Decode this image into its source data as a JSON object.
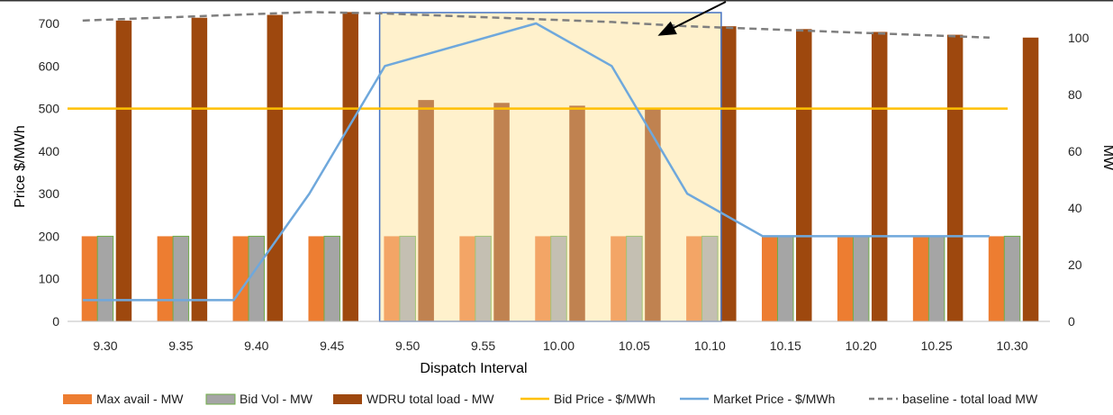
{
  "chart_data": {
    "type": "bar",
    "categories": [
      "9.30",
      "9.35",
      "9.40",
      "9.45",
      "9.50",
      "9.55",
      "10.00",
      "10.05",
      "10.10",
      "10.15",
      "10.20",
      "10.25",
      "10.30"
    ],
    "xlabel": "Dispatch Interval",
    "ylabel": "Price $/MWh",
    "y2label": "MW",
    "ylim": [
      0,
      700
    ],
    "y2lim": [
      0,
      105
    ],
    "yticks": [
      0,
      100,
      200,
      300,
      400,
      500,
      600,
      700
    ],
    "y2ticks": [
      0,
      20,
      40,
      60,
      80,
      100
    ],
    "grid": false,
    "legend_position": "bottom",
    "series": [
      {
        "name": "Max avail - MW",
        "type": "bar",
        "axis": "right",
        "color": "#ED7D31",
        "values": [
          30,
          30,
          30,
          30,
          30,
          30,
          30,
          30,
          30,
          30,
          30,
          30,
          30
        ]
      },
      {
        "name": "Bid Vol - MW",
        "type": "bar",
        "axis": "right",
        "color": "#A5A5A5",
        "values": [
          30,
          30,
          30,
          30,
          30,
          30,
          30,
          30,
          30,
          30,
          30,
          30,
          30
        ]
      },
      {
        "name": "WDRU total load - MW",
        "type": "bar",
        "axis": "right",
        "color": "#9E480E",
        "values": [
          106,
          107,
          108,
          109,
          78,
          77,
          76,
          75,
          104,
          103,
          102,
          101,
          100
        ]
      },
      {
        "name": "Bid Price - $/MWh",
        "type": "line",
        "axis": "left",
        "color": "#FFC000",
        "values": [
          500,
          500,
          500,
          500,
          500,
          500,
          500,
          500,
          500,
          500,
          500,
          500,
          500
        ]
      },
      {
        "name": "Market Price - $/MWh",
        "type": "line",
        "axis": "left",
        "color": "#6FA8DC",
        "values": [
          50,
          50,
          50,
          300,
          600,
          650,
          700,
          600,
          300,
          200,
          200,
          200,
          200
        ]
      },
      {
        "name": "baseline - total load MW",
        "type": "dashed-line",
        "axis": "right",
        "color": "#7F7F7F",
        "values": [
          106,
          107,
          108,
          109,
          108.5,
          107.5,
          106.5,
          105.5,
          104,
          103,
          102,
          101,
          100
        ]
      }
    ],
    "highlight": {
      "from": "9.50",
      "to": "10.10",
      "fill": "#FFF2CC",
      "border": "#4472C4"
    },
    "colors": {
      "axis": "#BFBFBF",
      "tick_text": "#262626",
      "arrow": "#000000"
    }
  }
}
